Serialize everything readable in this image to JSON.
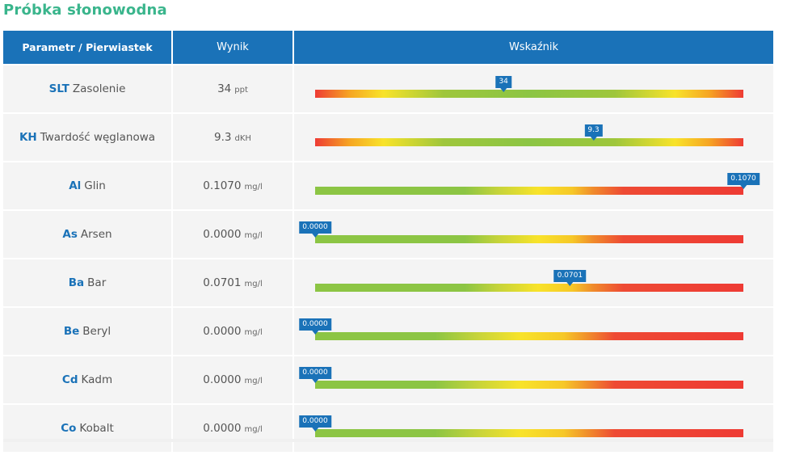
{
  "page": {
    "title": "Próbka słonowodna"
  },
  "table": {
    "headers": {
      "parameter": "Parametr / Pierwiastek",
      "result": "Wynik",
      "indicator": "Wskaźnik"
    },
    "rows": [
      {
        "symbol": "SLT",
        "name": "Zasolenie",
        "value": "34",
        "unit": "ppt",
        "marker_label": "34",
        "marker_position": 0.44,
        "scale": "red-yellow-green-yellow-red"
      },
      {
        "symbol": "KH",
        "name": "Twardość węglanowa",
        "value": "9.3",
        "unit": "dKH",
        "marker_label": "9.3",
        "marker_position": 0.65,
        "scale": "red-yellow-green-yellow-red"
      },
      {
        "symbol": "Al",
        "name": "Glin",
        "value": "0.1070",
        "unit": "mg/l",
        "marker_label": "0.1070",
        "marker_position": 1.0,
        "scale": "green-yellow-red"
      },
      {
        "symbol": "As",
        "name": "Arsen",
        "value": "0.0000",
        "unit": "mg/l",
        "marker_label": "0.0000",
        "marker_position": 0.0,
        "scale": "green-yellow-red"
      },
      {
        "symbol": "Ba",
        "name": "Bar",
        "value": "0.0701",
        "unit": "mg/l",
        "marker_label": "0.0701",
        "marker_position": 0.595,
        "scale": "green-yellow-red"
      },
      {
        "symbol": "Be",
        "name": "Beryl",
        "value": "0.0000",
        "unit": "mg/l",
        "marker_label": "0.0000",
        "marker_position": 0.0,
        "scale": "green-yellow-red"
      },
      {
        "symbol": "Cd",
        "name": "Kadm",
        "value": "0.0000",
        "unit": "mg/l",
        "marker_label": "0.0000",
        "marker_position": 0.0,
        "scale": "green-yellow-red"
      },
      {
        "symbol": "Co",
        "name": "Kobalt",
        "value": "0.0000",
        "unit": "mg/l",
        "marker_label": "0.0000",
        "marker_position": 0.0,
        "scale": "green-yellow-red"
      }
    ]
  },
  "colors": {
    "title": "#3ab58c",
    "header_bg": "#1a72b8",
    "symbol": "#1a72b8",
    "row_bg": "#f4f4f4",
    "marker_bg": "#1a72b8"
  }
}
